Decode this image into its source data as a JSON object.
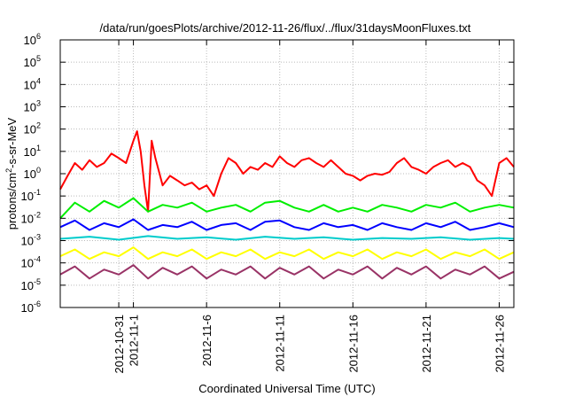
{
  "chart_data": {
    "type": "line",
    "title": "/data/run/goesPlots/archive/2012-11-26/flux/../flux/31daysMoonFluxes.txt",
    "xlabel": "Coordinated Universal Time (UTC)",
    "ylabel_base": "protons/cm",
    "ylabel_sup": "2",
    "ylabel_rest": "-s-sr-MeV",
    "yscale": "log",
    "ylim": [
      1e-06,
      1000000.0
    ],
    "y_ticks": [
      {
        "base": "10",
        "exp": "-6"
      },
      {
        "base": "10",
        "exp": "-5"
      },
      {
        "base": "10",
        "exp": "-4"
      },
      {
        "base": "10",
        "exp": "-3"
      },
      {
        "base": "10",
        "exp": "-2"
      },
      {
        "base": "10",
        "exp": "-1"
      },
      {
        "base": "10",
        "exp": "0"
      },
      {
        "base": "10",
        "exp": "1"
      },
      {
        "base": "10",
        "exp": "2"
      },
      {
        "base": "10",
        "exp": "3"
      },
      {
        "base": "10",
        "exp": "4"
      },
      {
        "base": "10",
        "exp": "5"
      },
      {
        "base": "10",
        "exp": "6"
      }
    ],
    "x_range_days": [
      "2012-10-27",
      "2012-11-27"
    ],
    "x_ticks": [
      {
        "date": "2012-10-31",
        "label": "2012-10-31"
      },
      {
        "date": "2012-11-01",
        "label": "2012-11-1"
      },
      {
        "date": "2012-11-06",
        "label": "2012-11-6"
      },
      {
        "date": "2012-11-11",
        "label": "2012-11-11"
      },
      {
        "date": "2012-11-16",
        "label": "2012-11-16"
      },
      {
        "date": "2012-11-21",
        "label": "2012-11-21"
      },
      {
        "date": "2012-11-26",
        "label": "2012-11-26"
      }
    ],
    "grid": true,
    "series": [
      {
        "color": "#ff0000",
        "points": [
          [
            "2012-10-27",
            0.2
          ],
          [
            "2012-10-27T12",
            0.8
          ],
          [
            "2012-10-28",
            3
          ],
          [
            "2012-10-28T12",
            1.5
          ],
          [
            "2012-10-29",
            4
          ],
          [
            "2012-10-29T12",
            2
          ],
          [
            "2012-10-30",
            3
          ],
          [
            "2012-10-30T12",
            8
          ],
          [
            "2012-10-31",
            5
          ],
          [
            "2012-10-31T12",
            3
          ],
          [
            "2012-11-01",
            30
          ],
          [
            "2012-11-01T06",
            80
          ],
          [
            "2012-11-01T12",
            10
          ],
          [
            "2012-11-01T18",
            0.3
          ],
          [
            "2012-11-02",
            0.02
          ],
          [
            "2012-11-02T06",
            30
          ],
          [
            "2012-11-02T12",
            5
          ],
          [
            "2012-11-03",
            0.3
          ],
          [
            "2012-11-03T12",
            0.8
          ],
          [
            "2012-11-04",
            0.5
          ],
          [
            "2012-11-04T12",
            0.3
          ],
          [
            "2012-11-05",
            0.4
          ],
          [
            "2012-11-05T12",
            0.2
          ],
          [
            "2012-11-06",
            0.3
          ],
          [
            "2012-11-06T12",
            0.1
          ],
          [
            "2012-11-07",
            1
          ],
          [
            "2012-11-07T12",
            5
          ],
          [
            "2012-11-08",
            3
          ],
          [
            "2012-11-08T12",
            1
          ],
          [
            "2012-11-09",
            2
          ],
          [
            "2012-11-09T12",
            1.5
          ],
          [
            "2012-11-10",
            3
          ],
          [
            "2012-11-10T12",
            2
          ],
          [
            "2012-11-11",
            6
          ],
          [
            "2012-11-11T12",
            3
          ],
          [
            "2012-11-12",
            2
          ],
          [
            "2012-11-12T12",
            4
          ],
          [
            "2012-11-13",
            5
          ],
          [
            "2012-11-13T12",
            3
          ],
          [
            "2012-11-14",
            2
          ],
          [
            "2012-11-14T12",
            4
          ],
          [
            "2012-11-15",
            2
          ],
          [
            "2012-11-15T12",
            1
          ],
          [
            "2012-11-16",
            0.8
          ],
          [
            "2012-11-16T12",
            0.5
          ],
          [
            "2012-11-17",
            0.8
          ],
          [
            "2012-11-17T12",
            1
          ],
          [
            "2012-11-18",
            0.9
          ],
          [
            "2012-11-18T12",
            1.2
          ],
          [
            "2012-11-19",
            3
          ],
          [
            "2012-11-19T12",
            5
          ],
          [
            "2012-11-20",
            2
          ],
          [
            "2012-11-20T12",
            1.5
          ],
          [
            "2012-11-21",
            1
          ],
          [
            "2012-11-21T12",
            2
          ],
          [
            "2012-11-22",
            3
          ],
          [
            "2012-11-22T12",
            4
          ],
          [
            "2012-11-23",
            2
          ],
          [
            "2012-11-23T12",
            3
          ],
          [
            "2012-11-24",
            2
          ],
          [
            "2012-11-24T12",
            0.5
          ],
          [
            "2012-11-25",
            0.3
          ],
          [
            "2012-11-25T12",
            0.1
          ],
          [
            "2012-11-26",
            3
          ],
          [
            "2012-11-26T12",
            5
          ],
          [
            "2012-11-27",
            2
          ]
        ]
      },
      {
        "color": "#00ee00",
        "points": [
          [
            "2012-10-27",
            0.01
          ],
          [
            "2012-10-28",
            0.05
          ],
          [
            "2012-10-29",
            0.02
          ],
          [
            "2012-10-30",
            0.06
          ],
          [
            "2012-10-31",
            0.03
          ],
          [
            "2012-11-01",
            0.08
          ],
          [
            "2012-11-02",
            0.02
          ],
          [
            "2012-11-03",
            0.04
          ],
          [
            "2012-11-04",
            0.03
          ],
          [
            "2012-11-05",
            0.05
          ],
          [
            "2012-11-06",
            0.02
          ],
          [
            "2012-11-07",
            0.03
          ],
          [
            "2012-11-08",
            0.04
          ],
          [
            "2012-11-09",
            0.02
          ],
          [
            "2012-11-10",
            0.05
          ],
          [
            "2012-11-11",
            0.06
          ],
          [
            "2012-11-12",
            0.03
          ],
          [
            "2012-11-13",
            0.02
          ],
          [
            "2012-11-14",
            0.04
          ],
          [
            "2012-11-15",
            0.02
          ],
          [
            "2012-11-16",
            0.03
          ],
          [
            "2012-11-17",
            0.02
          ],
          [
            "2012-11-18",
            0.04
          ],
          [
            "2012-11-19",
            0.03
          ],
          [
            "2012-11-20",
            0.02
          ],
          [
            "2012-11-21",
            0.04
          ],
          [
            "2012-11-22",
            0.03
          ],
          [
            "2012-11-23",
            0.05
          ],
          [
            "2012-11-24",
            0.02
          ],
          [
            "2012-11-25",
            0.03
          ],
          [
            "2012-11-26",
            0.04
          ],
          [
            "2012-11-27",
            0.03
          ]
        ]
      },
      {
        "color": "#0000ff",
        "points": [
          [
            "2012-10-27",
            0.004
          ],
          [
            "2012-10-28",
            0.008
          ],
          [
            "2012-10-29",
            0.003
          ],
          [
            "2012-10-30",
            0.006
          ],
          [
            "2012-10-31",
            0.004
          ],
          [
            "2012-11-01",
            0.009
          ],
          [
            "2012-11-02",
            0.003
          ],
          [
            "2012-11-03",
            0.005
          ],
          [
            "2012-11-04",
            0.004
          ],
          [
            "2012-11-05",
            0.007
          ],
          [
            "2012-11-06",
            0.003
          ],
          [
            "2012-11-07",
            0.005
          ],
          [
            "2012-11-08",
            0.006
          ],
          [
            "2012-11-09",
            0.003
          ],
          [
            "2012-11-10",
            0.007
          ],
          [
            "2012-11-11",
            0.008
          ],
          [
            "2012-11-12",
            0.004
          ],
          [
            "2012-11-13",
            0.003
          ],
          [
            "2012-11-14",
            0.006
          ],
          [
            "2012-11-15",
            0.004
          ],
          [
            "2012-11-16",
            0.005
          ],
          [
            "2012-11-17",
            0.003
          ],
          [
            "2012-11-18",
            0.006
          ],
          [
            "2012-11-19",
            0.004
          ],
          [
            "2012-11-20",
            0.003
          ],
          [
            "2012-11-21",
            0.006
          ],
          [
            "2012-11-22",
            0.004
          ],
          [
            "2012-11-23",
            0.007
          ],
          [
            "2012-11-24",
            0.003
          ],
          [
            "2012-11-25",
            0.004
          ],
          [
            "2012-11-26",
            0.006
          ],
          [
            "2012-11-27",
            0.004
          ]
        ]
      },
      {
        "color": "#00cccc",
        "points": [
          [
            "2012-10-27",
            0.0012
          ],
          [
            "2012-10-29",
            0.0015
          ],
          [
            "2012-10-31",
            0.0011
          ],
          [
            "2012-11-02",
            0.0016
          ],
          [
            "2012-11-04",
            0.0012
          ],
          [
            "2012-11-06",
            0.0014
          ],
          [
            "2012-11-08",
            0.0011
          ],
          [
            "2012-11-10",
            0.0015
          ],
          [
            "2012-11-12",
            0.0012
          ],
          [
            "2012-11-14",
            0.0014
          ],
          [
            "2012-11-16",
            0.0011
          ],
          [
            "2012-11-18",
            0.0013
          ],
          [
            "2012-11-20",
            0.0012
          ],
          [
            "2012-11-22",
            0.0014
          ],
          [
            "2012-11-24",
            0.0011
          ],
          [
            "2012-11-26",
            0.0013
          ],
          [
            "2012-11-27",
            0.0012
          ]
        ]
      },
      {
        "color": "#ffff00",
        "points": [
          [
            "2012-10-27",
            0.0002
          ],
          [
            "2012-10-28",
            0.0004
          ],
          [
            "2012-10-29",
            0.00015
          ],
          [
            "2012-10-30",
            0.0003
          ],
          [
            "2012-10-31",
            0.0002
          ],
          [
            "2012-11-01",
            0.0005
          ],
          [
            "2012-11-02",
            0.00015
          ],
          [
            "2012-11-03",
            0.0003
          ],
          [
            "2012-11-04",
            0.0002
          ],
          [
            "2012-11-05",
            0.0004
          ],
          [
            "2012-11-06",
            0.00015
          ],
          [
            "2012-11-07",
            0.0003
          ],
          [
            "2012-11-08",
            0.0002
          ],
          [
            "2012-11-09",
            0.0004
          ],
          [
            "2012-11-10",
            0.00015
          ],
          [
            "2012-11-11",
            0.0003
          ],
          [
            "2012-11-12",
            0.0002
          ],
          [
            "2012-11-13",
            0.0004
          ],
          [
            "2012-11-14",
            0.00015
          ],
          [
            "2012-11-15",
            0.0003
          ],
          [
            "2012-11-16",
            0.0002
          ],
          [
            "2012-11-17",
            0.0004
          ],
          [
            "2012-11-18",
            0.00015
          ],
          [
            "2012-11-19",
            0.0003
          ],
          [
            "2012-11-20",
            0.0002
          ],
          [
            "2012-11-21",
            0.0004
          ],
          [
            "2012-11-22",
            0.00015
          ],
          [
            "2012-11-23",
            0.0003
          ],
          [
            "2012-11-24",
            0.0002
          ],
          [
            "2012-11-25",
            0.0004
          ],
          [
            "2012-11-26",
            0.00015
          ],
          [
            "2012-11-27",
            0.0003
          ]
        ]
      },
      {
        "color": "#993366",
        "points": [
          [
            "2012-10-27",
            3e-05
          ],
          [
            "2012-10-28",
            7e-05
          ],
          [
            "2012-10-29",
            2e-05
          ],
          [
            "2012-10-30",
            5e-05
          ],
          [
            "2012-10-31",
            3e-05
          ],
          [
            "2012-11-01",
            8e-05
          ],
          [
            "2012-11-02",
            2e-05
          ],
          [
            "2012-11-03",
            6e-05
          ],
          [
            "2012-11-04",
            3e-05
          ],
          [
            "2012-11-05",
            7e-05
          ],
          [
            "2012-11-06",
            2e-05
          ],
          [
            "2012-11-07",
            5e-05
          ],
          [
            "2012-11-08",
            3e-05
          ],
          [
            "2012-11-09",
            7e-05
          ],
          [
            "2012-11-10",
            2e-05
          ],
          [
            "2012-11-11",
            6e-05
          ],
          [
            "2012-11-12",
            3e-05
          ],
          [
            "2012-11-13",
            7e-05
          ],
          [
            "2012-11-14",
            2e-05
          ],
          [
            "2012-11-15",
            5e-05
          ],
          [
            "2012-11-16",
            3e-05
          ],
          [
            "2012-11-17",
            7e-05
          ],
          [
            "2012-11-18",
            2e-05
          ],
          [
            "2012-11-19",
            6e-05
          ],
          [
            "2012-11-20",
            3e-05
          ],
          [
            "2012-11-21",
            7e-05
          ],
          [
            "2012-11-22",
            2e-05
          ],
          [
            "2012-11-23",
            5e-05
          ],
          [
            "2012-11-24",
            3e-05
          ],
          [
            "2012-11-25",
            7e-05
          ],
          [
            "2012-11-26",
            2e-05
          ],
          [
            "2012-11-27",
            4e-05
          ]
        ]
      }
    ]
  }
}
